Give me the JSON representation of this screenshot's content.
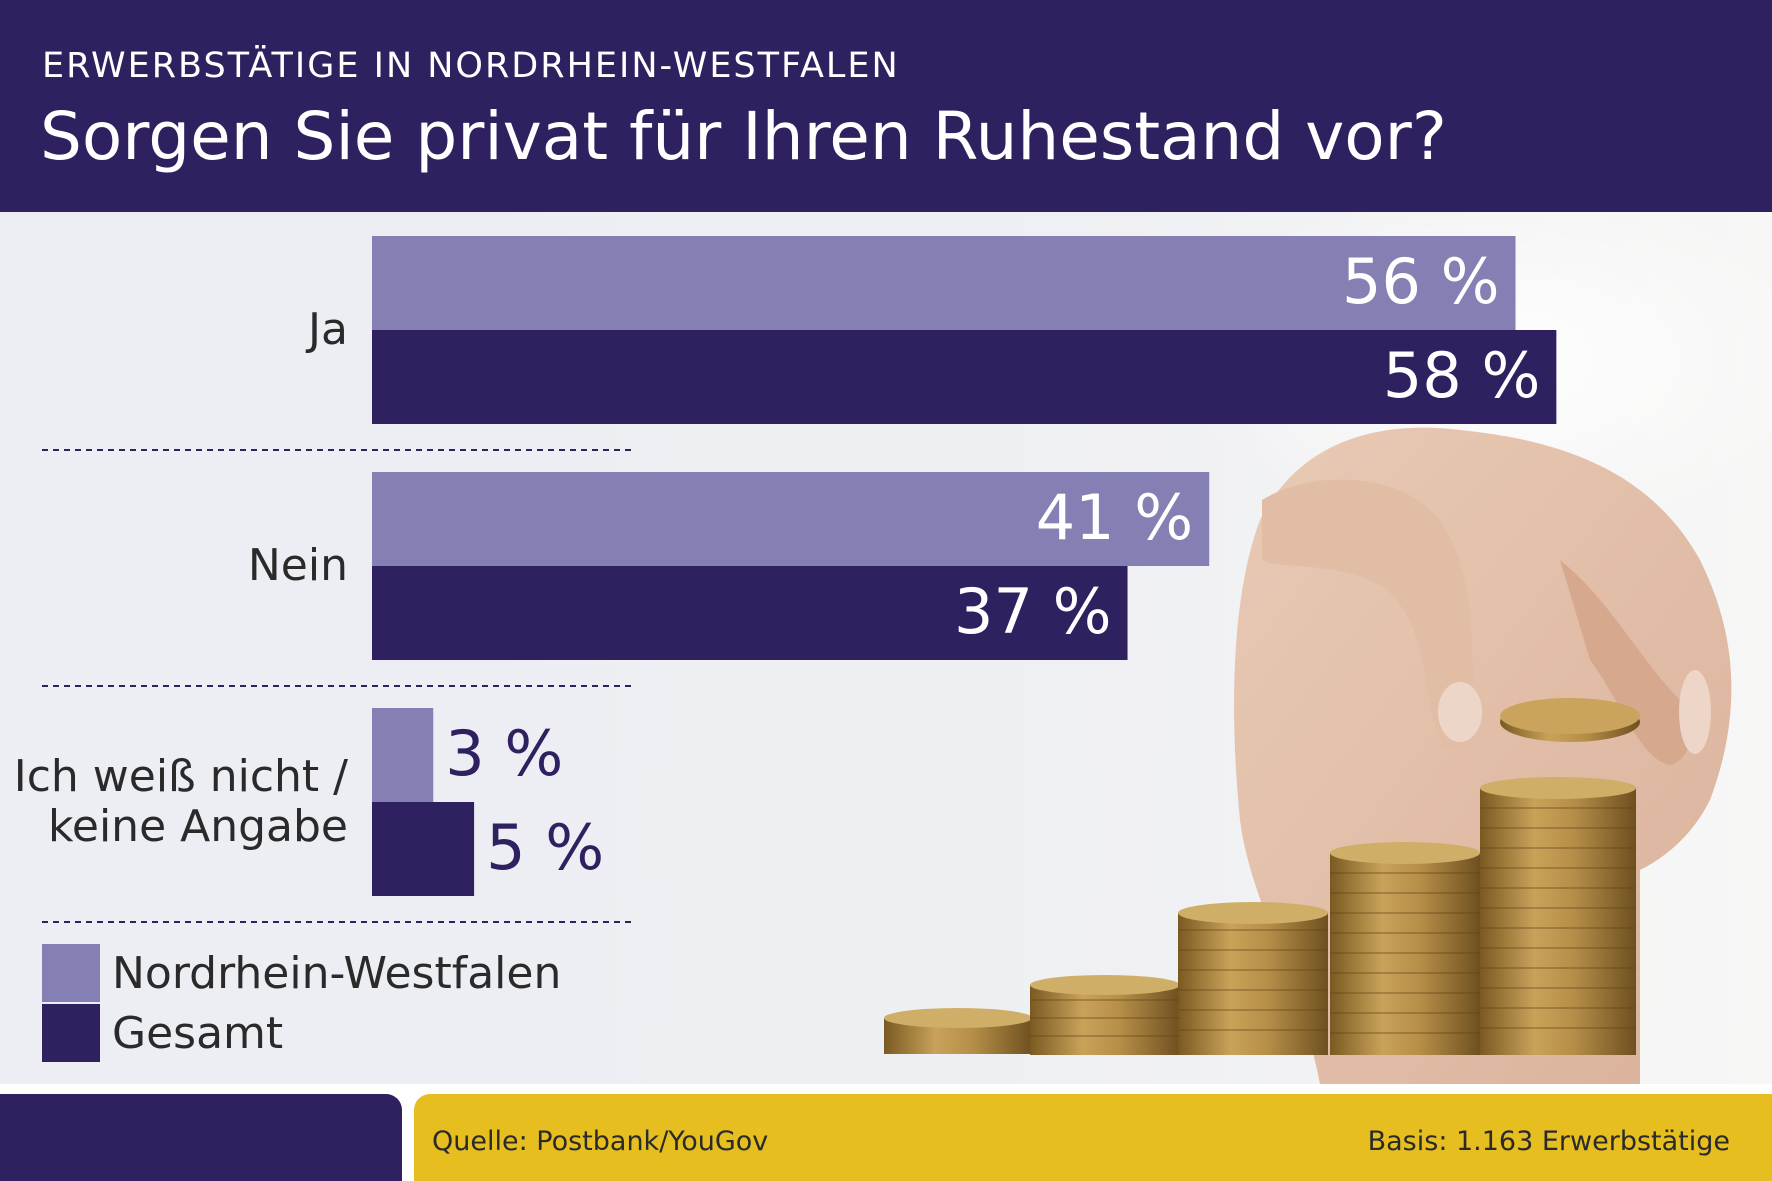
{
  "header": {
    "kicker": "ERWERBSTÄTIGE IN NORDRHEIN-WESTFALEN",
    "title": "Sorgen Sie privat für Ihren Ruhestand vor?"
  },
  "chart_data": {
    "type": "bar",
    "orientation": "horizontal",
    "categories": [
      "Ja",
      "Nein",
      "Ich weiß nicht /\nkeine Angabe"
    ],
    "series": [
      {
        "name": "Nordrhein-Westfalen",
        "values": [
          56,
          41,
          3
        ],
        "labels": [
          "56 %",
          "41 %",
          "3 %"
        ],
        "color": "#8480b3"
      },
      {
        "name": "Gesamt",
        "values": [
          58,
          37,
          5
        ],
        "labels": [
          "58 %",
          "37 %",
          "5 %"
        ],
        "color": "#2f2160"
      }
    ],
    "unit": "%",
    "legend": "bottom-left"
  },
  "footer": {
    "source": "Quelle: Postbank/YouGov",
    "basis": "Basis: 1.163 Erwerbstätige"
  },
  "colors": {
    "header_bg": "#2f2160",
    "accent_light": "#8480b3",
    "footer_yellow": "#e6be20"
  }
}
